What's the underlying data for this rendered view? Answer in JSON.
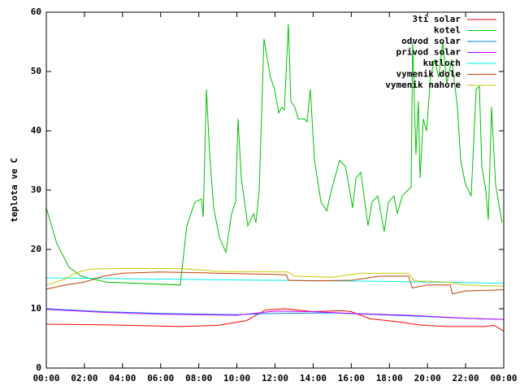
{
  "chart_data": {
    "type": "line",
    "y_label": "teplota ve C",
    "xlim": [
      0,
      24
    ],
    "ylim": [
      0,
      60
    ],
    "yticks": [
      0,
      10,
      20,
      30,
      40,
      50,
      60
    ],
    "xticks": [
      {
        "value": 0,
        "label": "00:00"
      },
      {
        "value": 2,
        "label": "02:00"
      },
      {
        "value": 4,
        "label": "04:00"
      },
      {
        "value": 6,
        "label": "06:00"
      },
      {
        "value": 8,
        "label": "08:00"
      },
      {
        "value": 10,
        "label": "10:00"
      },
      {
        "value": 12,
        "label": "12:00"
      },
      {
        "value": 14,
        "label": "14:00"
      },
      {
        "value": 16,
        "label": "16:00"
      },
      {
        "value": 18,
        "label": "18:00"
      },
      {
        "value": 20,
        "label": "20:00"
      },
      {
        "value": 22,
        "label": "22:00"
      },
      {
        "value": 24,
        "label": "00:00"
      }
    ],
    "legend": "top-right",
    "series": [
      {
        "name": "3ti solar",
        "color": "#ff0000",
        "x": [
          0,
          3,
          7,
          9,
          10.5,
          11.5,
          12.5,
          14,
          15.5,
          16,
          17,
          18.5,
          19.5,
          21,
          23,
          23.5,
          24
        ],
        "values": [
          7.4,
          7.3,
          7,
          7.2,
          8,
          9.8,
          10,
          9.5,
          9.7,
          9.5,
          8.3,
          7.8,
          7.3,
          7,
          7,
          7.2,
          6.2
        ]
      },
      {
        "name": "kotel",
        "color": "#00c000",
        "x": [
          0,
          0.55,
          1.19,
          1.83,
          3.11,
          7.03,
          7.37,
          7.8,
          8.14,
          8.23,
          8.4,
          8.57,
          8.78,
          9.08,
          9.42,
          9.72,
          9.93,
          10.06,
          10.23,
          10.57,
          10.87,
          11.0,
          11.17,
          11.42,
          11.76,
          11.98,
          12.19,
          12.36,
          12.49,
          12.7,
          12.83,
          13.04,
          13.21,
          13.55,
          13.68,
          13.85,
          14.07,
          14.41,
          14.71,
          14.96,
          15.39,
          15.69,
          15.86,
          16.07,
          16.24,
          16.5,
          16.71,
          16.88,
          17.09,
          17.39,
          17.56,
          17.73,
          17.95,
          18.24,
          18.41,
          18.67,
          18.97,
          19.14,
          19.22,
          19.39,
          19.52,
          19.61,
          19.78,
          19.95,
          20.16,
          20.37,
          20.59,
          20.8,
          21.01,
          21.27,
          21.57,
          21.74,
          21.99,
          22.29,
          22.55,
          22.72,
          22.85,
          23.06,
          23.19,
          23.36,
          23.57,
          23.91
        ],
        "values": [
          27,
          21,
          17,
          15.5,
          14.5,
          14,
          24,
          28,
          28.5,
          25.5,
          47,
          36,
          27,
          22,
          19.5,
          26,
          28,
          42,
          32,
          24,
          26,
          24.5,
          30,
          55.5,
          49,
          47,
          43,
          44,
          43.5,
          58,
          45,
          44,
          42,
          42,
          41.5,
          47,
          35,
          28,
          26.5,
          30,
          35,
          34,
          31,
          27,
          32,
          33,
          28,
          24,
          28,
          29,
          26,
          23,
          28,
          29,
          26,
          29,
          30,
          30.5,
          55,
          36,
          45,
          32,
          42,
          40,
          49,
          52,
          49,
          55,
          48,
          52,
          44,
          35,
          31,
          29,
          47,
          47.5,
          34,
          30,
          25,
          44,
          31,
          24.5
        ]
      },
      {
        "name": "odvod solar",
        "color": "#0080ff",
        "x": [
          0,
          3,
          6,
          10,
          12,
          15,
          19,
          22,
          24
        ],
        "values": [
          10,
          9.5,
          9.2,
          9,
          9.2,
          9.3,
          8.8,
          8.4,
          8.2
        ]
      },
      {
        "name": "privod solar",
        "color": "#c000ff",
        "x": [
          0,
          3,
          6,
          10,
          12,
          14,
          16,
          19,
          22,
          24
        ],
        "values": [
          9.9,
          9.4,
          9.1,
          8.9,
          9.6,
          9.5,
          9.2,
          8.9,
          8.4,
          8.2
        ]
      },
      {
        "name": "kutloch",
        "color": "#00eeee",
        "x": [
          0,
          6,
          12,
          18,
          24
        ],
        "values": [
          15.2,
          15,
          14.8,
          14.6,
          14.3
        ]
      },
      {
        "name": "vymenik dole",
        "color": "#c04000",
        "x": [
          0,
          1,
          2,
          3,
          4,
          6,
          9,
          12,
          12.6,
          12.7,
          14,
          16,
          17.5,
          19,
          19.2,
          20,
          21.2,
          21.3,
          22,
          24
        ],
        "values": [
          13.3,
          14,
          14.5,
          15.5,
          16,
          16.2,
          16,
          15.8,
          15.7,
          14.8,
          14.7,
          14.8,
          15.5,
          15.5,
          13.5,
          14,
          14,
          12.5,
          13,
          13.2
        ]
      },
      {
        "name": "vymenik nahore",
        "color": "#c8c800",
        "x": [
          0,
          1,
          1.5,
          2.3,
          4,
          7,
          9,
          12.7,
          13,
          15,
          16.5,
          19,
          19.3,
          21,
          22,
          24
        ],
        "values": [
          14,
          15,
          16,
          16.7,
          16.8,
          16.8,
          16.3,
          16.2,
          15.5,
          15.3,
          16,
          16,
          14.7,
          14.5,
          14,
          13.8
        ]
      }
    ]
  }
}
